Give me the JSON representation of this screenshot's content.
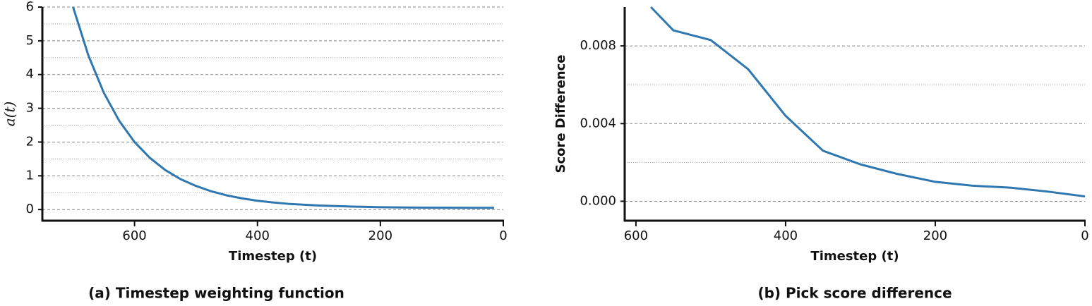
{
  "chart_data": [
    {
      "type": "line",
      "caption": "(a) Timestep weighting function",
      "xlabel": "Timestep (t)",
      "ylabel": "a(t)",
      "xlim": [
        750,
        0
      ],
      "xticks": [
        600,
        400,
        200,
        0
      ],
      "ylim": [
        -0.33,
        6
      ],
      "yticks": [
        0,
        1,
        2,
        3,
        4,
        5,
        6
      ],
      "minor_yticks": [
        0.5,
        1.5,
        2.5,
        3.5,
        4.5,
        5.5
      ],
      "grid": true,
      "series": [
        {
          "color": "#2f77b0",
          "x": [
            700,
            675,
            650,
            625,
            600,
            575,
            550,
            525,
            500,
            475,
            450,
            425,
            400,
            375,
            350,
            300,
            250,
            200,
            150,
            100,
            50,
            15
          ],
          "values": [
            6.0,
            4.56,
            3.46,
            2.63,
            2.0,
            1.53,
            1.17,
            0.9,
            0.7,
            0.54,
            0.42,
            0.33,
            0.26,
            0.21,
            0.17,
            0.12,
            0.09,
            0.07,
            0.06,
            0.055,
            0.05,
            0.05
          ]
        }
      ]
    },
    {
      "type": "line",
      "caption": "(b) Pick score difference",
      "xlabel": "Timestep (t)",
      "ylabel": "Score Difference",
      "xlim": [
        615,
        0
      ],
      "xticks": [
        600,
        400,
        200,
        0
      ],
      "ylim": [
        -0.001,
        0.01
      ],
      "yticks": [
        {
          "value": 0,
          "label": "0.000"
        },
        {
          "value": 0.004,
          "label": "0.004"
        },
        {
          "value": 0.008,
          "label": "0.008"
        }
      ],
      "minor_yticks": [
        0.002,
        0.006
      ],
      "grid": true,
      "series": [
        {
          "color": "#2f77b0",
          "x": [
            580,
            550,
            500,
            450,
            400,
            350,
            300,
            250,
            200,
            150,
            100,
            50,
            0
          ],
          "values": [
            0.01,
            0.0088,
            0.0083,
            0.0068,
            0.0044,
            0.0026,
            0.0019,
            0.0014,
            0.001,
            0.0008,
            0.0007,
            0.0005,
            0.00025
          ]
        }
      ]
    }
  ]
}
